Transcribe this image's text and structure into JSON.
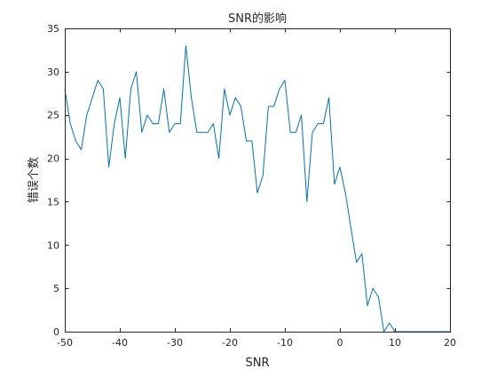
{
  "chart_data": {
    "type": "line",
    "title": "SNR的影响",
    "xlabel": "SNR",
    "ylabel": "错误个数",
    "xlim": [
      -50,
      20
    ],
    "ylim": [
      0,
      35
    ],
    "xticks": [
      -50,
      -40,
      -30,
      -20,
      -10,
      0,
      10,
      20
    ],
    "yticks": [
      0,
      5,
      10,
      15,
      20,
      25,
      30,
      35
    ],
    "grid": false,
    "line_color": "#0072BD",
    "x": [
      -50,
      -49,
      -48,
      -47,
      -46,
      -45,
      -44,
      -43,
      -42,
      -41,
      -40,
      -39,
      -38,
      -37,
      -36,
      -35,
      -34,
      -33,
      -32,
      -31,
      -30,
      -29,
      -28,
      -27,
      -26,
      -25,
      -24,
      -23,
      -22,
      -21,
      -20,
      -19,
      -18,
      -17,
      -16,
      -15,
      -14,
      -13,
      -12,
      -11,
      -10,
      -9,
      -8,
      -7,
      -6,
      -5,
      -4,
      -3,
      -2,
      -1,
      0,
      1,
      2,
      3,
      4,
      5,
      6,
      7,
      8,
      9,
      10,
      11,
      12,
      13,
      14,
      15,
      16,
      17,
      18,
      19,
      20
    ],
    "y": [
      28,
      24,
      22,
      21,
      25,
      27,
      29,
      28,
      19,
      24,
      27,
      20,
      28,
      30,
      23,
      25,
      24,
      24,
      28,
      23,
      24,
      24,
      33,
      27,
      23,
      23,
      23,
      24,
      20,
      28,
      25,
      27,
      26,
      22,
      22,
      16,
      18,
      26,
      26,
      28,
      29,
      23,
      23,
      25,
      15,
      23,
      24,
      24,
      27,
      17,
      19,
      16,
      12,
      8,
      9,
      3,
      5,
      4,
      0,
      1,
      0,
      0,
      0,
      0,
      0,
      0,
      0,
      0,
      0,
      0,
      0
    ]
  }
}
